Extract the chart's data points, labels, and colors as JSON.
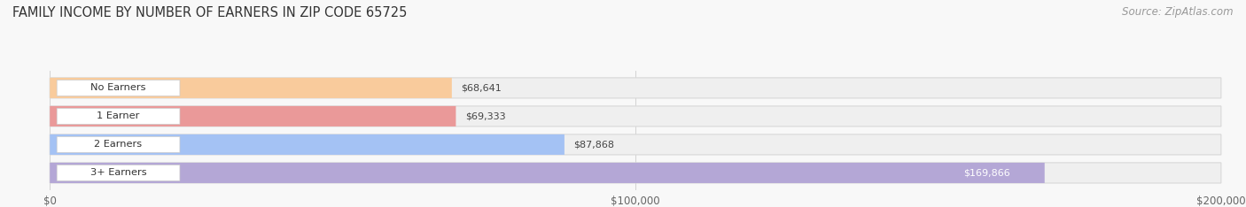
{
  "title": "FAMILY INCOME BY NUMBER OF EARNERS IN ZIP CODE 65725",
  "source": "Source: ZipAtlas.com",
  "categories": [
    "No Earners",
    "1 Earner",
    "2 Earners",
    "3+ Earners"
  ],
  "values": [
    68641,
    69333,
    87868,
    169866
  ],
  "bar_colors": [
    "#f9cb9c",
    "#ea9999",
    "#a4c2f4",
    "#b4a7d6"
  ],
  "value_labels": [
    "$68,641",
    "$69,333",
    "$87,868",
    "$169,866"
  ],
  "xlim": [
    0,
    200000
  ],
  "xticks": [
    0,
    100000,
    200000
  ],
  "xtick_labels": [
    "$0",
    "$100,000",
    "$200,000"
  ],
  "background_color": "#f8f8f8",
  "bar_background_color": "#efefef",
  "title_fontsize": 10.5,
  "source_fontsize": 8.5,
  "bar_height": 0.72,
  "inner_label_color": [
    "#555555",
    "#555555",
    "#555555",
    "#ffffff"
  ],
  "inner_label_bg": [
    "#ffffff",
    "#ffffff",
    "#ffffff",
    "#b4a7d6"
  ]
}
